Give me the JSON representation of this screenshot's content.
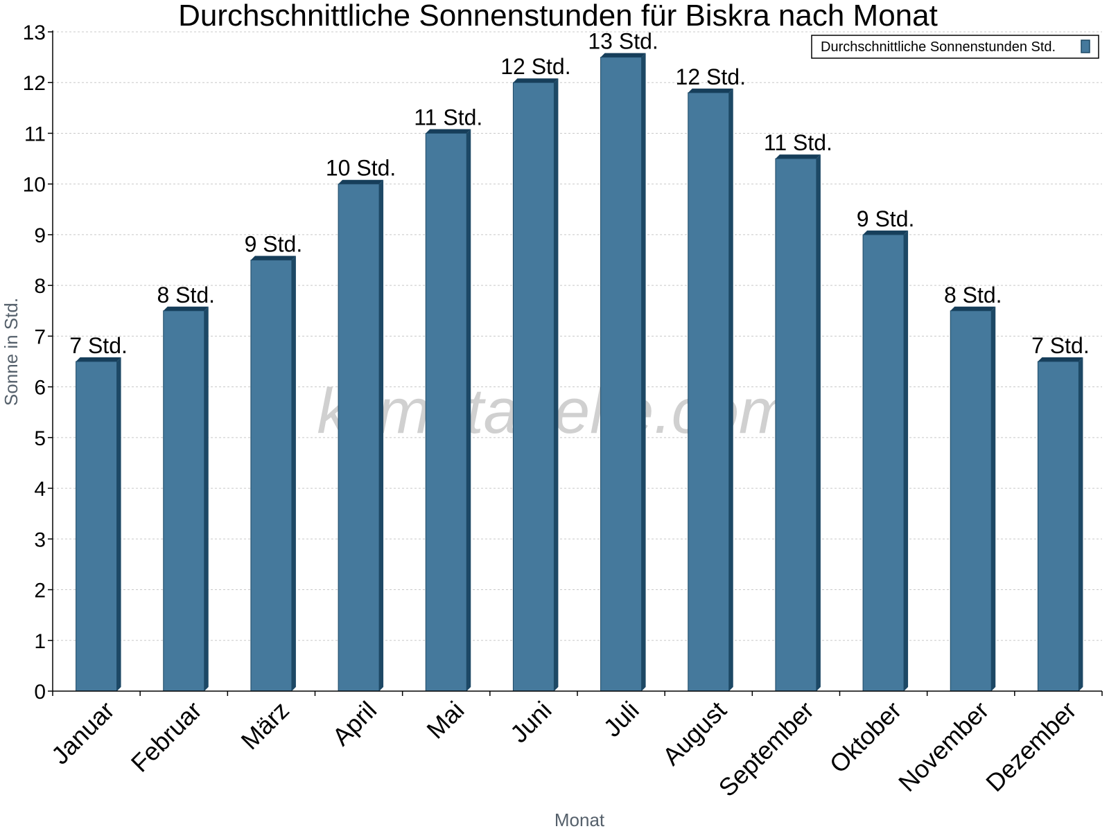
{
  "watermark": "klimatabelle.com",
  "colors": {
    "bar_front": "#45799c",
    "bar_side": "#1d4865",
    "bar_top": "#163e5a",
    "grid": "#c8c8c8"
  },
  "chart_data": {
    "type": "bar",
    "title": "Durchschnittliche Sonnenstunden für Biskra nach Monat",
    "xlabel": "Monat",
    "ylabel": "Sonne in Std.",
    "ylim": [
      0,
      13
    ],
    "yticks": [
      0,
      1,
      2,
      3,
      4,
      5,
      6,
      7,
      8,
      9,
      10,
      11,
      12,
      13
    ],
    "grid": true,
    "legend_position": "top-right",
    "categories": [
      "Januar",
      "Februar",
      "März",
      "April",
      "Mai",
      "Juni",
      "Juli",
      "August",
      "September",
      "Oktober",
      "November",
      "Dezember"
    ],
    "series": [
      {
        "name": "Durchschnittliche Sonnenstunden Std.",
        "values": [
          6.5,
          7.5,
          8.5,
          10,
          11,
          12,
          12.5,
          11.8,
          10.5,
          9,
          7.5,
          6.5
        ],
        "labels": [
          "7 Std.",
          "8 Std.",
          "9 Std.",
          "10 Std.",
          "11 Std.",
          "12 Std.",
          "13 Std.",
          "12 Std.",
          "11 Std.",
          "9 Std.",
          "8 Std.",
          "7 Std."
        ]
      }
    ]
  }
}
